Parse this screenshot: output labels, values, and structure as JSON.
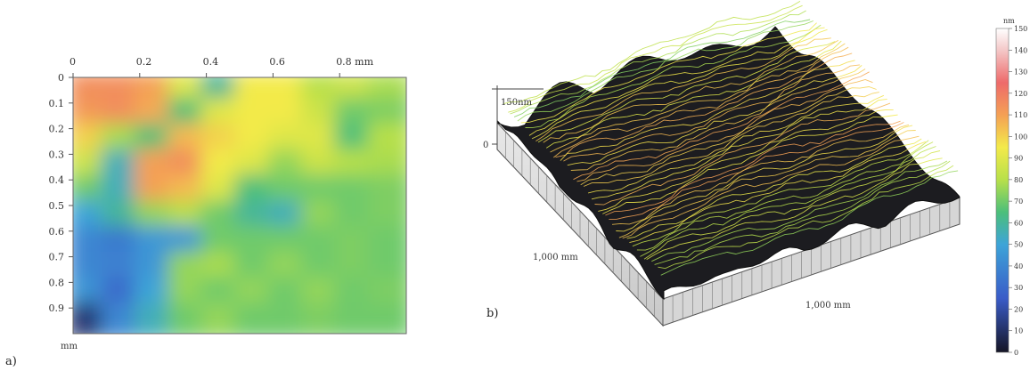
{
  "chart_data": [
    {
      "type": "heatmap",
      "panel_label": "a)",
      "x_axis": {
        "ticks": [
          "0",
          "0.2",
          "0.4",
          "0.6",
          "0.8 mm"
        ],
        "tick_values": [
          0,
          0.2,
          0.4,
          0.6,
          0.8
        ],
        "range": [
          0,
          1.0
        ]
      },
      "y_axis": {
        "ticks": [
          "0",
          "0.1",
          "0.2",
          "0.3",
          "0.4",
          "0.5",
          "0.6",
          "0.7",
          "0.8",
          "0.9"
        ],
        "tick_values": [
          0,
          0.1,
          0.2,
          0.3,
          0.4,
          0.5,
          0.6,
          0.7,
          0.8,
          0.9
        ],
        "range": [
          0,
          1.0
        ],
        "unit_label": "mm"
      },
      "value_unit": "nm",
      "value_range": [
        0,
        150
      ],
      "rows": 10,
      "cols": 10,
      "values": [
        [
          115,
          115,
          110,
          90,
          60,
          95,
          95,
          80,
          85,
          78
        ],
        [
          112,
          115,
          108,
          65,
          90,
          95,
          95,
          85,
          70,
          72
        ],
        [
          100,
          78,
          65,
          105,
          100,
          95,
          90,
          90,
          65,
          80
        ],
        [
          85,
          55,
          110,
          115,
          95,
          90,
          75,
          85,
          80,
          78
        ],
        [
          70,
          55,
          110,
          105,
          90,
          65,
          70,
          70,
          70,
          72
        ],
        [
          50,
          60,
          75,
          80,
          70,
          60,
          55,
          75,
          70,
          72
        ],
        [
          40,
          35,
          45,
          45,
          70,
          70,
          70,
          70,
          72,
          70
        ],
        [
          40,
          38,
          45,
          75,
          78,
          70,
          75,
          70,
          72,
          70
        ],
        [
          45,
          30,
          50,
          75,
          70,
          75,
          70,
          75,
          70,
          72
        ],
        [
          12,
          40,
          55,
          70,
          75,
          70,
          70,
          72,
          70,
          70
        ]
      ]
    },
    {
      "type": "surface3d",
      "panel_label": "b)",
      "z_label": "150nm",
      "z_zero": "0",
      "x_label": "1,000 mm",
      "y_label": "1,000 mm",
      "surface_color": "#1c1c20"
    }
  ],
  "colorbar": {
    "unit": "nm",
    "ticks": [
      "150",
      "140",
      "130",
      "120",
      "110",
      "100",
      "90",
      "80",
      "70",
      "60",
      "50",
      "40",
      "30",
      "20",
      "10",
      "0"
    ],
    "stops": [
      {
        "value": 0,
        "color": "#151525"
      },
      {
        "value": 25,
        "color": "#3a5cc8"
      },
      {
        "value": 50,
        "color": "#3da4d8"
      },
      {
        "value": 65,
        "color": "#4cbf7a"
      },
      {
        "value": 80,
        "color": "#b8e04a"
      },
      {
        "value": 95,
        "color": "#f3ea4a"
      },
      {
        "value": 110,
        "color": "#f4a055"
      },
      {
        "value": 125,
        "color": "#ee6a6a"
      },
      {
        "value": 140,
        "color": "#f4c8c8"
      },
      {
        "value": 150,
        "color": "#ffffff"
      }
    ]
  }
}
